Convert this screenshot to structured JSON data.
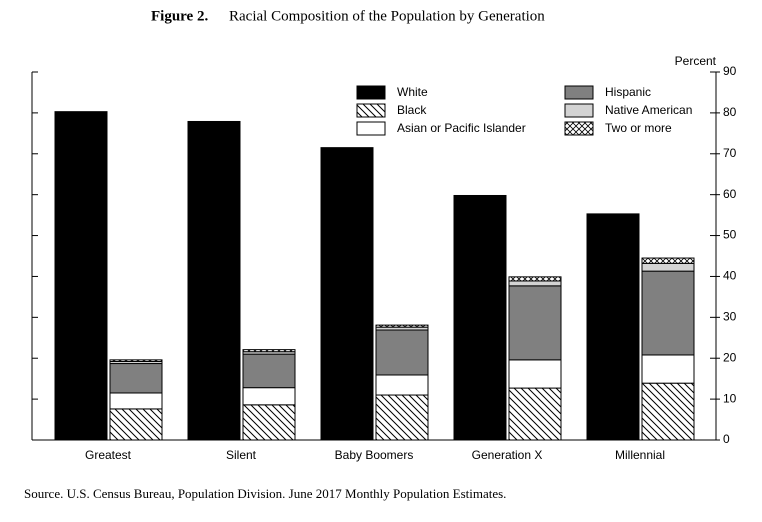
{
  "chart_data": {
    "type": "bar",
    "title_label": "Figure 2.",
    "title": "Racial Composition of the Population by Generation",
    "y_label": "Percent",
    "note": "Source.  U.S. Census Bureau, Population Division.  June 2017 Monthly Population Estimates.",
    "categories": [
      "Greatest",
      "Silent",
      "Baby Boomers",
      "Generation X",
      "Millennial"
    ],
    "series": [
      {
        "name": "White",
        "color": "#000000",
        "values": [
          80.3,
          77.9,
          71.5,
          59.8,
          55.3
        ]
      },
      {
        "name": "Black",
        "color": "#ffffff",
        "pattern": "diagonal",
        "stacked": true,
        "values": [
          7.6,
          8.6,
          11.0,
          12.7,
          13.9
        ]
      },
      {
        "name": "Asian or Pacific Islander",
        "color": "#ffffff",
        "stacked": true,
        "values": [
          3.9,
          4.2,
          4.9,
          6.9,
          6.9
        ]
      },
      {
        "name": "Hispanic",
        "color": "#808080",
        "stacked": true,
        "values": [
          7.2,
          8.2,
          11.0,
          18.1,
          20.5
        ]
      },
      {
        "name": "Native American",
        "color": "#d3d3d3",
        "stacked": true,
        "values": [
          0.5,
          0.6,
          0.7,
          1.2,
          1.9
        ]
      },
      {
        "name": "Two or more",
        "color": "#ffffff",
        "pattern": "crosshatch",
        "stacked": true,
        "values": [
          0.4,
          0.5,
          0.5,
          1.0,
          1.3
        ]
      }
    ],
    "ylim": [
      0,
      90
    ],
    "yticks": [
      0,
      10,
      20,
      30,
      40,
      50,
      60,
      70,
      80,
      90
    ],
    "y_axis_side": "right"
  }
}
